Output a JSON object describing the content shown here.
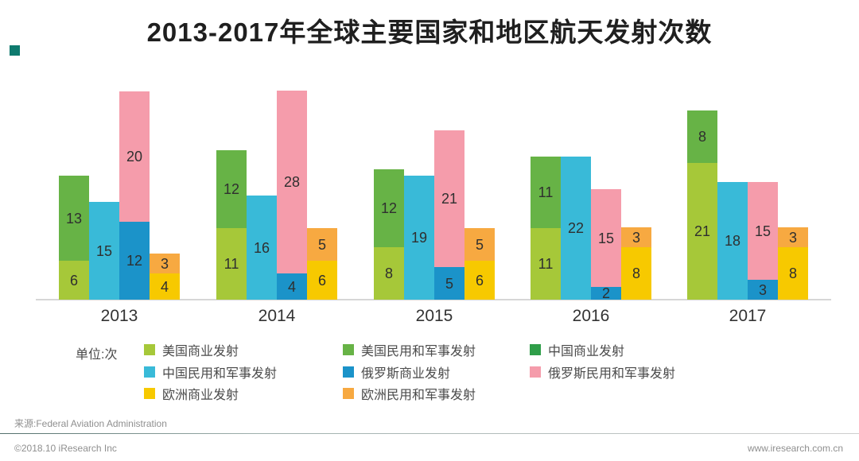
{
  "colors": {
    "corner_accent": "#0e7a6e",
    "axis": "#d6d6d6",
    "title_text": "#1f1f1f",
    "value_label_text": "#2f2f2f",
    "legend_text": "#4a4a4a",
    "footer_text": "#8f8f8f"
  },
  "footer": {
    "source": "来源:Federal Aviation Administration",
    "copyright": "©2018.10 iResearch Inc",
    "website": "www.iresearch.com.cn"
  },
  "chart_data": {
    "type": "bar",
    "variant": "grouped-stacked",
    "title": "2013-2017年全球主要国家和地区航天发射次数",
    "unit_label": "单位:次",
    "categories": [
      "2013",
      "2014",
      "2015",
      "2016",
      "2017"
    ],
    "groups": [
      {
        "name": "美国",
        "stack": [
          {
            "series": "美国商业发射",
            "color": "#a6c839",
            "values": [
              6,
              11,
              8,
              11,
              21
            ]
          },
          {
            "series": "美国民用和军事发射",
            "color": "#67b346",
            "values": [
              13,
              12,
              12,
              11,
              8
            ]
          }
        ]
      },
      {
        "name": "中国",
        "stack": [
          {
            "series": "中国商业发射",
            "color": "#2f9e49",
            "values": [
              0,
              0,
              0,
              0,
              0
            ]
          },
          {
            "series": "中国民用和军事发射",
            "color": "#39bad8",
            "values": [
              15,
              16,
              19,
              22,
              18
            ]
          }
        ]
      },
      {
        "name": "俄罗斯",
        "stack": [
          {
            "series": "俄罗斯商业发射",
            "color": "#1b93c9",
            "values": [
              12,
              4,
              5,
              2,
              3
            ]
          },
          {
            "series": "俄罗斯民用和军事发射",
            "color": "#f59cab",
            "values": [
              20,
              28,
              21,
              15,
              15
            ]
          }
        ]
      },
      {
        "name": "欧洲",
        "stack": [
          {
            "series": "欧洲商业发射",
            "color": "#f7c900",
            "values": [
              4,
              6,
              6,
              8,
              8
            ]
          },
          {
            "series": "欧洲民用和军事发射",
            "color": "#f7a941",
            "values": [
              3,
              5,
              5,
              3,
              3
            ]
          }
        ]
      }
    ],
    "legend_position": "bottom",
    "grid": false,
    "xlabel": "",
    "ylabel": "",
    "ylim": [
      0,
      32
    ]
  }
}
